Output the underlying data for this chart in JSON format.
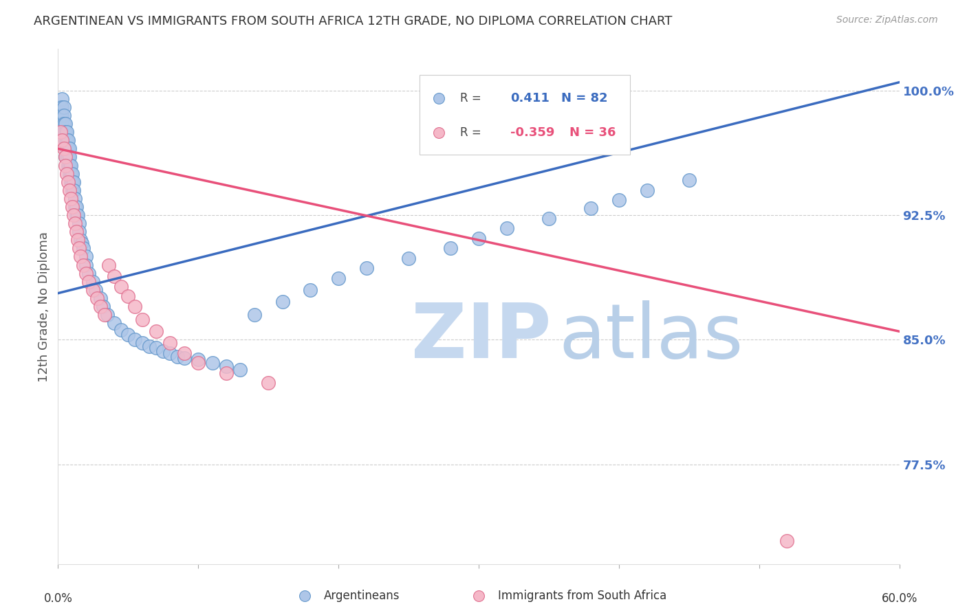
{
  "title": "ARGENTINEAN VS IMMIGRANTS FROM SOUTH AFRICA 12TH GRADE, NO DIPLOMA CORRELATION CHART",
  "source": "Source: ZipAtlas.com",
  "ylabel": "12th Grade, No Diploma",
  "ytick_labels_right": [
    "100.0%",
    "92.5%",
    "85.0%",
    "77.5%"
  ],
  "ytick_positions_right": [
    1.0,
    0.925,
    0.85,
    0.775
  ],
  "xmin": 0.0,
  "xmax": 0.6,
  "ymin": 0.715,
  "ymax": 1.025,
  "blue_color": "#aec6e8",
  "blue_edge": "#6699cc",
  "pink_color": "#f5b8c8",
  "pink_edge": "#e07090",
  "blue_line_color": "#3a6bbf",
  "pink_line_color": "#e8507a",
  "watermark_zip_color": "#c5d8ef",
  "watermark_atlas_color": "#b8cfe8",
  "grid_color": "#cccccc",
  "blue_line_x0": 0.0,
  "blue_line_x1": 0.6,
  "blue_line_y0": 0.878,
  "blue_line_y1": 1.005,
  "pink_line_x0": 0.0,
  "pink_line_x1": 0.6,
  "pink_line_y0": 0.965,
  "pink_line_y1": 0.855,
  "blue_scatter_x": [
    0.002,
    0.002,
    0.003,
    0.003,
    0.003,
    0.003,
    0.004,
    0.004,
    0.004,
    0.004,
    0.005,
    0.005,
    0.005,
    0.005,
    0.005,
    0.006,
    0.006,
    0.006,
    0.006,
    0.007,
    0.007,
    0.007,
    0.007,
    0.008,
    0.008,
    0.008,
    0.008,
    0.009,
    0.009,
    0.009,
    0.01,
    0.01,
    0.01,
    0.011,
    0.011,
    0.012,
    0.012,
    0.013,
    0.013,
    0.014,
    0.015,
    0.015,
    0.016,
    0.017,
    0.018,
    0.02,
    0.02,
    0.022,
    0.025,
    0.027,
    0.03,
    0.032,
    0.035,
    0.04,
    0.045,
    0.05,
    0.055,
    0.06,
    0.065,
    0.07,
    0.075,
    0.08,
    0.085,
    0.09,
    0.1,
    0.11,
    0.12,
    0.13,
    0.14,
    0.16,
    0.18,
    0.2,
    0.22,
    0.25,
    0.28,
    0.3,
    0.32,
    0.35,
    0.38,
    0.4,
    0.42,
    0.45
  ],
  "blue_scatter_y": [
    0.99,
    0.985,
    0.995,
    0.99,
    0.985,
    0.98,
    0.99,
    0.985,
    0.98,
    0.975,
    0.98,
    0.975,
    0.97,
    0.965,
    0.96,
    0.975,
    0.97,
    0.965,
    0.96,
    0.97,
    0.965,
    0.96,
    0.955,
    0.965,
    0.96,
    0.955,
    0.95,
    0.955,
    0.95,
    0.945,
    0.95,
    0.945,
    0.94,
    0.945,
    0.94,
    0.935,
    0.93,
    0.93,
    0.925,
    0.925,
    0.92,
    0.915,
    0.91,
    0.908,
    0.905,
    0.9,
    0.895,
    0.89,
    0.885,
    0.88,
    0.875,
    0.87,
    0.865,
    0.86,
    0.856,
    0.853,
    0.85,
    0.848,
    0.846,
    0.845,
    0.843,
    0.842,
    0.84,
    0.839,
    0.838,
    0.836,
    0.834,
    0.832,
    0.865,
    0.873,
    0.88,
    0.887,
    0.893,
    0.899,
    0.905,
    0.911,
    0.917,
    0.923,
    0.929,
    0.934,
    0.94,
    0.946
  ],
  "pink_scatter_x": [
    0.002,
    0.003,
    0.004,
    0.005,
    0.005,
    0.006,
    0.007,
    0.008,
    0.009,
    0.01,
    0.011,
    0.012,
    0.013,
    0.014,
    0.015,
    0.016,
    0.018,
    0.02,
    0.022,
    0.025,
    0.028,
    0.03,
    0.033,
    0.036,
    0.04,
    0.045,
    0.05,
    0.055,
    0.06,
    0.07,
    0.08,
    0.09,
    0.1,
    0.12,
    0.15,
    0.52
  ],
  "pink_scatter_y": [
    0.975,
    0.97,
    0.965,
    0.96,
    0.955,
    0.95,
    0.945,
    0.94,
    0.935,
    0.93,
    0.925,
    0.92,
    0.915,
    0.91,
    0.905,
    0.9,
    0.895,
    0.89,
    0.885,
    0.88,
    0.875,
    0.87,
    0.865,
    0.895,
    0.888,
    0.882,
    0.876,
    0.87,
    0.862,
    0.855,
    0.848,
    0.842,
    0.836,
    0.83,
    0.824,
    0.729
  ]
}
